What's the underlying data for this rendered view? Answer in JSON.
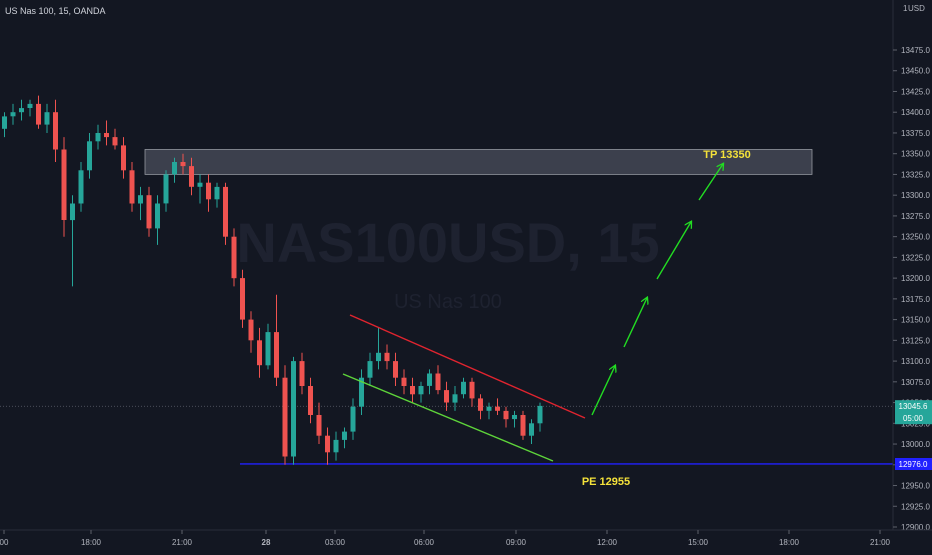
{
  "header": {
    "symbol_title": "US Nas 100, 15, OANDA"
  },
  "watermark": {
    "symbol": "NAS100USD, 15",
    "name": "US Nas 100"
  },
  "price_axis": {
    "currency": "USD",
    "top_label": "1",
    "ticks": [
      13475.0,
      13450.0,
      13425.0,
      13400.0,
      13375.0,
      13350.0,
      13325.0,
      13300.0,
      13275.0,
      13250.0,
      13225.0,
      13200.0,
      13175.0,
      13150.0,
      13125.0,
      13100.0,
      13075.0,
      13050.0,
      13025.0,
      13000.0,
      12975.0,
      12950.0,
      12925.0,
      12900.0
    ],
    "current_price_label": "13045.6",
    "countdown_label": "05:00",
    "blue_line_label": "12976.0"
  },
  "time_axis": {
    "labels": [
      "00",
      "18:00",
      "21:00",
      "28",
      "03:00",
      "06:00",
      "09:00",
      "12:00",
      "15:00",
      "18:00",
      "21:00"
    ]
  },
  "annotations": {
    "tp_label": "TP 13350",
    "pe_label": "PE 12955"
  },
  "colors": {
    "up": "#26a69a",
    "down": "#ef5350",
    "background": "#131722",
    "blue_line": "#2121ff",
    "trend_top": "#e0242f",
    "trend_bottom": "#5ed43a",
    "arrows": "#22dd22",
    "label_yellow": "#f5e23a"
  },
  "chart_data": {
    "type": "candlestick",
    "title": "US Nas 100, 15, OANDA",
    "symbol": "NAS100USD",
    "interval": "15",
    "ylim": [
      12890,
      13495
    ],
    "resistance_zone": [
      13325,
      13355
    ],
    "entry_level": 12976.0,
    "target_label": "TP 13350",
    "entry_label": "PE 12955",
    "candles": [
      [
        13380,
        13400,
        13370,
        13395
      ],
      [
        13395,
        13410,
        13385,
        13400
      ],
      [
        13400,
        13415,
        13390,
        13405
      ],
      [
        13405,
        13415,
        13395,
        13410
      ],
      [
        13410,
        13420,
        13380,
        13385
      ],
      [
        13385,
        13410,
        13375,
        13400
      ],
      [
        13400,
        13415,
        13340,
        13355
      ],
      [
        13355,
        13370,
        13250,
        13270
      ],
      [
        13270,
        13300,
        13190,
        13290
      ],
      [
        13290,
        13340,
        13280,
        13330
      ],
      [
        13330,
        13375,
        13320,
        13365
      ],
      [
        13365,
        13385,
        13355,
        13375
      ],
      [
        13375,
        13390,
        13360,
        13370
      ],
      [
        13370,
        13380,
        13355,
        13360
      ],
      [
        13360,
        13370,
        13320,
        13330
      ],
      [
        13330,
        13340,
        13280,
        13290
      ],
      [
        13290,
        13310,
        13270,
        13300
      ],
      [
        13300,
        13310,
        13250,
        13260
      ],
      [
        13260,
        13300,
        13240,
        13290
      ],
      [
        13290,
        13330,
        13280,
        13325
      ],
      [
        13325,
        13345,
        13315,
        13340
      ],
      [
        13340,
        13350,
        13325,
        13335
      ],
      [
        13335,
        13345,
        13300,
        13310
      ],
      [
        13310,
        13325,
        13290,
        13315
      ],
      [
        13315,
        13325,
        13280,
        13295
      ],
      [
        13295,
        13315,
        13285,
        13310
      ],
      [
        13310,
        13315,
        13240,
        13250
      ],
      [
        13250,
        13260,
        13190,
        13200
      ],
      [
        13200,
        13210,
        13140,
        13150
      ],
      [
        13150,
        13160,
        13110,
        13125
      ],
      [
        13125,
        13140,
        13080,
        13095
      ],
      [
        13095,
        13145,
        13090,
        13135
      ],
      [
        13135,
        13180,
        13070,
        13080
      ],
      [
        13080,
        13095,
        12975,
        12985
      ],
      [
        12985,
        13105,
        12975,
        13100
      ],
      [
        13100,
        13110,
        13060,
        13070
      ],
      [
        13070,
        13080,
        13025,
        13035
      ],
      [
        13035,
        13050,
        13000,
        13010
      ],
      [
        13010,
        13020,
        12975,
        12990
      ],
      [
        12990,
        13015,
        12980,
        13005
      ],
      [
        13005,
        13020,
        12995,
        13015
      ],
      [
        13015,
        13055,
        13005,
        13045
      ],
      [
        13045,
        13090,
        13035,
        13080
      ],
      [
        13080,
        13110,
        13070,
        13100
      ],
      [
        13100,
        13140,
        13090,
        13110
      ],
      [
        13110,
        13120,
        13090,
        13100
      ],
      [
        13100,
        13110,
        13070,
        13080
      ],
      [
        13080,
        13090,
        13060,
        13070
      ],
      [
        13070,
        13080,
        13050,
        13060
      ],
      [
        13060,
        13075,
        13050,
        13070
      ],
      [
        13070,
        13090,
        13060,
        13085
      ],
      [
        13085,
        13095,
        13060,
        13065
      ],
      [
        13065,
        13075,
        13040,
        13050
      ],
      [
        13050,
        13070,
        13040,
        13060
      ],
      [
        13060,
        13080,
        13055,
        13075
      ],
      [
        13075,
        13080,
        13045,
        13055
      ],
      [
        13055,
        13060,
        13030,
        13040
      ],
      [
        13040,
        13050,
        13030,
        13045
      ],
      [
        13045,
        13055,
        13035,
        13040
      ],
      [
        13040,
        13045,
        13020,
        13030
      ],
      [
        13030,
        13040,
        13020,
        13035
      ],
      [
        13035,
        13040,
        13005,
        13010
      ],
      [
        13010,
        13030,
        13000,
        13025
      ],
      [
        13025,
        13050,
        13015,
        13046
      ]
    ]
  }
}
